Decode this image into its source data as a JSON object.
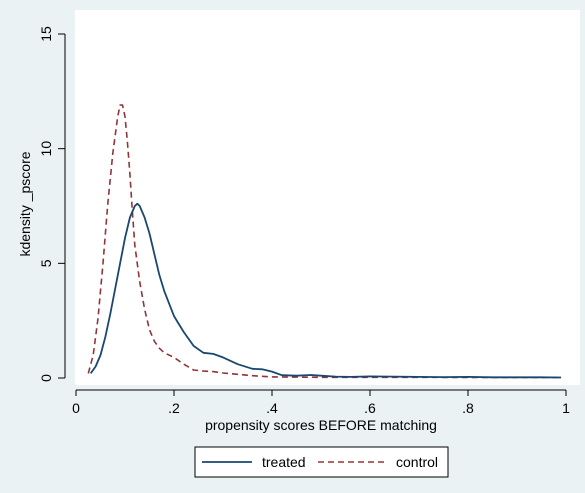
{
  "chart_data": {
    "type": "line",
    "title": "",
    "xlabel": "propensity scores BEFORE matching",
    "ylabel": "kdensity _pscore",
    "xlim": [
      0,
      1
    ],
    "ylim": [
      0,
      15
    ],
    "x_ticks": [
      0,
      0.2,
      0.4,
      0.6,
      0.8,
      1
    ],
    "x_tick_labels": [
      "0",
      ".2",
      ".4",
      ".6",
      ".8",
      "1"
    ],
    "y_ticks": [
      0,
      5,
      10,
      15
    ],
    "y_tick_labels": [
      "0",
      "5",
      "10",
      "15"
    ],
    "grid": false,
    "legend": {
      "position": "bottom",
      "entries": [
        "treated",
        "control"
      ]
    },
    "colors": {
      "treated": "#1a476f",
      "control": "#90353b",
      "background": "#eaf2f3",
      "plot_area": "#ffffff"
    },
    "series": [
      {
        "name": "treated",
        "line_style": "solid",
        "x": [
          0.03,
          0.04,
          0.05,
          0.06,
          0.07,
          0.08,
          0.09,
          0.1,
          0.11,
          0.12,
          0.125,
          0.13,
          0.14,
          0.15,
          0.16,
          0.17,
          0.18,
          0.2,
          0.22,
          0.24,
          0.26,
          0.28,
          0.3,
          0.33,
          0.36,
          0.38,
          0.4,
          0.42,
          0.45,
          0.48,
          0.5,
          0.53,
          0.56,
          0.6,
          0.65,
          0.7,
          0.75,
          0.8,
          0.85,
          0.9,
          0.95,
          0.99
        ],
        "y": [
          0.2,
          0.5,
          1.0,
          1.8,
          2.8,
          3.9,
          5.0,
          6.1,
          7.0,
          7.5,
          7.6,
          7.5,
          7.0,
          6.3,
          5.4,
          4.5,
          3.8,
          2.7,
          2.0,
          1.4,
          1.1,
          1.05,
          0.9,
          0.6,
          0.4,
          0.38,
          0.28,
          0.12,
          0.1,
          0.13,
          0.1,
          0.06,
          0.05,
          0.07,
          0.06,
          0.05,
          0.04,
          0.05,
          0.03,
          0.03,
          0.03,
          0.02
        ]
      },
      {
        "name": "control",
        "line_style": "dashed",
        "x": [
          0.025,
          0.035,
          0.045,
          0.055,
          0.065,
          0.075,
          0.085,
          0.09,
          0.095,
          0.1,
          0.105,
          0.11,
          0.115,
          0.12,
          0.13,
          0.14,
          0.15,
          0.16,
          0.17,
          0.18,
          0.2,
          0.22,
          0.24,
          0.26,
          0.28,
          0.3,
          0.33,
          0.36,
          0.4,
          0.45,
          0.5,
          0.6,
          0.7,
          0.8,
          0.9,
          0.99
        ],
        "y": [
          0.2,
          1.0,
          2.6,
          5.0,
          7.6,
          9.8,
          11.4,
          11.9,
          11.9,
          11.4,
          10.3,
          8.9,
          7.3,
          5.8,
          4.2,
          3.0,
          2.1,
          1.6,
          1.3,
          1.1,
          0.9,
          0.6,
          0.35,
          0.3,
          0.28,
          0.22,
          0.16,
          0.1,
          0.05,
          0.04,
          0.03,
          0.03,
          0.03,
          0.02,
          0.02,
          0.02
        ]
      }
    ]
  }
}
